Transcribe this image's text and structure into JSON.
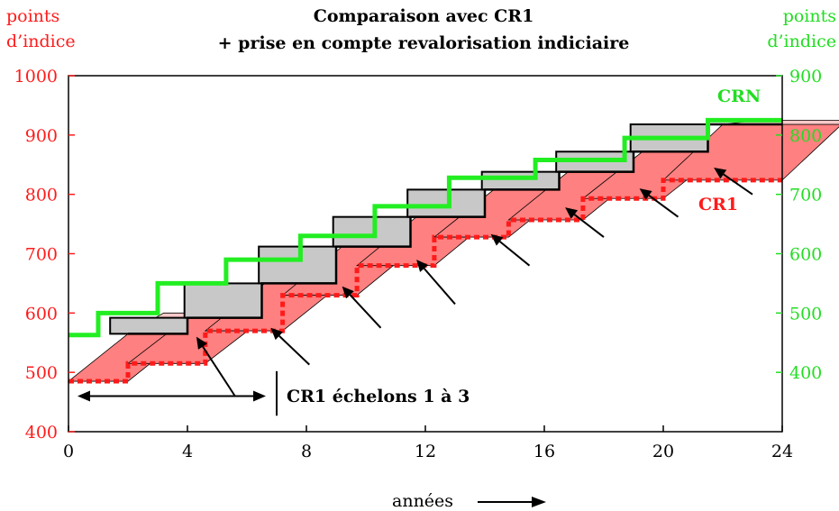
{
  "chart_data": {
    "type": "line",
    "title_line1": "Comparaison avec CR1",
    "title_line2": "+ prise en compte revalorisation indiciaire",
    "xlabel": "années",
    "ylabel_left_line1": "points",
    "ylabel_left_line2": "d’indice",
    "ylabel_right_line1": "points",
    "ylabel_right_line2": "d’indice",
    "xlim": [
      0,
      24
    ],
    "ylim_left": [
      400,
      1000
    ],
    "ylim_right": [
      300,
      900
    ],
    "x_ticks": [
      "0",
      "4",
      "8",
      "12",
      "16",
      "20",
      "24"
    ],
    "y_ticks_left": [
      "400",
      "500",
      "600",
      "700",
      "800",
      "900",
      "1000"
    ],
    "y_ticks_right": [
      "400",
      "500",
      "600",
      "700",
      "800",
      "900"
    ],
    "colors": {
      "cr1": "#ff1a1a",
      "crn": "#22ee22",
      "red_band": "#ff8080",
      "pink_band": "#ffcaca",
      "gray_box": "#c8c8c8"
    },
    "series": [
      {
        "name": "CRN",
        "axis": "left",
        "x": [
          0,
          1,
          1,
          3,
          3,
          5.3,
          5.3,
          7.8,
          7.8,
          10.3,
          10.3,
          12.8,
          12.8,
          15.7,
          15.7,
          18.7,
          18.7,
          21.5,
          21.5,
          24
        ],
        "y": [
          563,
          563,
          600,
          600,
          650,
          650,
          690,
          690,
          730,
          730,
          780,
          780,
          828,
          828,
          858,
          858,
          895,
          895,
          925,
          925
        ]
      },
      {
        "name": "CR1",
        "axis": "left",
        "x": [
          0,
          2,
          2,
          4.6,
          4.6,
          7.2,
          7.2,
          9.7,
          9.7,
          12.3,
          12.3,
          14.8,
          14.8,
          17.3,
          17.3,
          20,
          20,
          24
        ],
        "y": [
          485,
          485,
          515,
          515,
          570,
          570,
          630,
          630,
          680,
          680,
          728,
          728,
          757,
          757,
          793,
          793,
          824,
          824
        ]
      },
      {
        "name": "",
        "axis": "left",
        "x": [
          2,
          4,
          4,
          6.5,
          6.5,
          9,
          9,
          11.5,
          11.5,
          14,
          14,
          16.5,
          16.5,
          19,
          19,
          21.5,
          21.5,
          24
        ],
        "y": [
          565,
          565,
          592,
          592,
          650,
          650,
          712,
          712,
          762,
          762,
          808,
          808,
          838,
          838,
          872,
          872,
          918,
          918
        ]
      }
    ],
    "annotations": [
      "CRN",
      "CR1",
      "CR1 échelons 1 à 3"
    ],
    "arrows": [
      {
        "from": [
          5.6,
          460
        ],
        "to": [
          4.3,
          560
        ]
      },
      {
        "from": [
          8.1,
          513
        ],
        "to": [
          6.8,
          575
        ]
      },
      {
        "from": [
          10.5,
          575
        ],
        "to": [
          9.2,
          645
        ]
      },
      {
        "from": [
          13.0,
          615
        ],
        "to": [
          11.7,
          690
        ]
      },
      {
        "from": [
          15.5,
          680
        ],
        "to": [
          14.2,
          733
        ]
      },
      {
        "from": [
          18.0,
          728
        ],
        "to": [
          16.7,
          778
        ]
      },
      {
        "from": [
          20.5,
          762
        ],
        "to": [
          19.2,
          810
        ]
      },
      {
        "from": [
          23.0,
          800
        ],
        "to": [
          21.7,
          845
        ]
      }
    ],
    "interval": {
      "label": "CR1 échelons 1 à 3",
      "from": 0,
      "to": 7,
      "y": 460
    }
  }
}
